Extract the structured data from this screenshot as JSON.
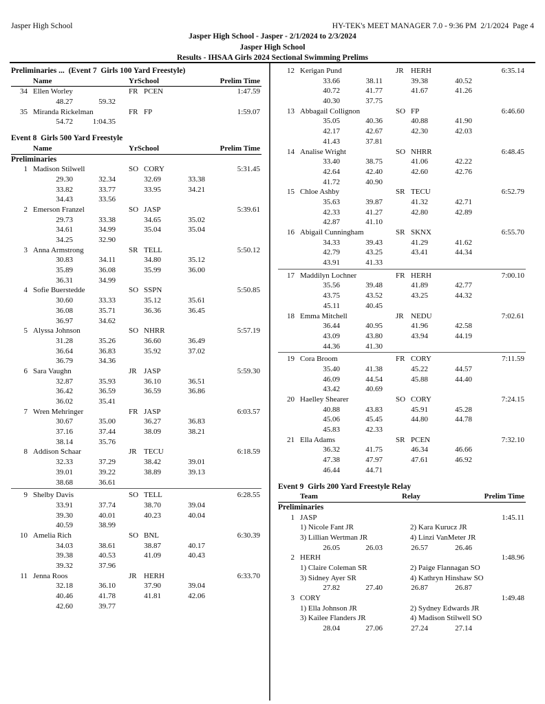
{
  "header": {
    "school": "Jasper High School",
    "meta": "HY-TEK's MEET MANAGER 7.0 - 9:36 PM  2/1/2024  Page 4",
    "meet_title": "Jasper High School - Jasper - 2/1/2024 to 2/3/2024",
    "host": "Jasper High School",
    "results_title": "Results - IHSAA Girls 2024 Sectional Swimming Prelims"
  },
  "columns": {
    "left": [
      {
        "type": "section_header",
        "text": "Preliminaries ...  (Event 7  Girls 100 Yard Freestyle)"
      },
      {
        "type": "table_header",
        "variant": "individual",
        "col1": "Name",
        "col2": "YrSchool",
        "col3": "Prelim Time"
      },
      {
        "type": "entry",
        "place": "34",
        "name": "Ellen Worley",
        "yr": "FR",
        "school": "PCEN",
        "time": "1:47.59",
        "splits": [
          [
            "48.27",
            "59.32"
          ]
        ]
      },
      {
        "type": "entry",
        "place": "35",
        "name": "Miranda Rickelman",
        "yr": "FR",
        "school": "FP",
        "time": "1:59.07",
        "splits": [
          [
            "54.72",
            "1:04.35"
          ]
        ]
      },
      {
        "type": "event_header",
        "text": "Event 8  Girls 500 Yard Freestyle"
      },
      {
        "type": "table_header",
        "variant": "individual",
        "col1": "Name",
        "col2": "YrSchool",
        "col3": "Prelim Time"
      },
      {
        "type": "subheader",
        "text": "Preliminaries"
      },
      {
        "type": "entry",
        "place": "1",
        "name": "Madison Stilwell",
        "yr": "SO",
        "school": "CORY",
        "time": "5:31.45",
        "splits": [
          [
            "29.30",
            "32.34",
            "32.69",
            "33.38"
          ],
          [
            "33.82",
            "33.77",
            "33.95",
            "34.21"
          ],
          [
            "34.43",
            "33.56"
          ]
        ]
      },
      {
        "type": "entry",
        "place": "2",
        "name": "Emerson Franzel",
        "yr": "SO",
        "school": "JASP",
        "time": "5:39.61",
        "splits": [
          [
            "29.73",
            "33.38",
            "34.65",
            "35.02"
          ],
          [
            "34.61",
            "34.99",
            "35.04",
            "35.04"
          ],
          [
            "34.25",
            "32.90"
          ]
        ]
      },
      {
        "type": "entry",
        "place": "3",
        "name": "Anna Armstrong",
        "yr": "SR",
        "school": "TELL",
        "time": "5:50.12",
        "splits": [
          [
            "30.83",
            "34.11",
            "34.80",
            "35.12"
          ],
          [
            "35.89",
            "36.08",
            "35.99",
            "36.00"
          ],
          [
            "36.31",
            "34.99"
          ]
        ]
      },
      {
        "type": "entry",
        "place": "4",
        "name": "Sofie Buerstedde",
        "yr": "SO",
        "school": "SSPN",
        "time": "5:50.85",
        "splits": [
          [
            "30.60",
            "33.33",
            "35.12",
            "35.61"
          ],
          [
            "36.08",
            "35.71",
            "36.36",
            "36.45"
          ],
          [
            "36.97",
            "34.62"
          ]
        ]
      },
      {
        "type": "entry",
        "place": "5",
        "name": "Alyssa Johnson",
        "yr": "SO",
        "school": "NHRR",
        "time": "5:57.19",
        "splits": [
          [
            "31.28",
            "35.26",
            "36.60",
            "36.49"
          ],
          [
            "36.64",
            "36.83",
            "35.92",
            "37.02"
          ],
          [
            "36.79",
            "34.36"
          ]
        ]
      },
      {
        "type": "entry",
        "place": "6",
        "name": "Sara Vaughn",
        "yr": "JR",
        "school": "JASP",
        "time": "5:59.30",
        "splits": [
          [
            "32.87",
            "35.93",
            "36.10",
            "36.51"
          ],
          [
            "36.42",
            "36.59",
            "36.59",
            "36.86"
          ],
          [
            "36.02",
            "35.41"
          ]
        ]
      },
      {
        "type": "entry",
        "place": "7",
        "name": "Wren Mehringer",
        "yr": "FR",
        "school": "JASP",
        "time": "6:03.57",
        "splits": [
          [
            "30.67",
            "35.00",
            "36.27",
            "36.83"
          ],
          [
            "37.16",
            "37.44",
            "38.09",
            "38.21"
          ],
          [
            "38.14",
            "35.76"
          ]
        ]
      },
      {
        "type": "entry",
        "place": "8",
        "name": "Addison Schaar",
        "yr": "JR",
        "school": "TECU",
        "time": "6:18.59",
        "splits": [
          [
            "32.33",
            "37.29",
            "38.42",
            "39.01"
          ],
          [
            "39.01",
            "39.22",
            "38.89",
            "39.13"
          ],
          [
            "38.68",
            "36.61"
          ]
        ]
      },
      {
        "type": "separator"
      },
      {
        "type": "entry",
        "place": "9",
        "name": "Shelby Davis",
        "yr": "SO",
        "school": "TELL",
        "time": "6:28.55",
        "splits": [
          [
            "33.91",
            "37.74",
            "38.70",
            "39.04"
          ],
          [
            "39.30",
            "40.01",
            "40.23",
            "40.04"
          ],
          [
            "40.59",
            "38.99"
          ]
        ]
      },
      {
        "type": "entry",
        "place": "10",
        "name": "Amelia Rich",
        "yr": "SO",
        "school": "BNL",
        "time": "6:30.39",
        "splits": [
          [
            "34.03",
            "38.61",
            "38.87",
            "40.17"
          ],
          [
            "39.38",
            "40.53",
            "41.09",
            "40.43"
          ],
          [
            "39.32",
            "37.96"
          ]
        ]
      },
      {
        "type": "entry",
        "place": "11",
        "name": "Jenna Roos",
        "yr": "JR",
        "school": "HERH",
        "time": "6:33.70",
        "splits": [
          [
            "32.18",
            "36.10",
            "37.90",
            "39.04"
          ],
          [
            "40.46",
            "41.78",
            "41.81",
            "42.06"
          ],
          [
            "42.60",
            "39.77"
          ]
        ]
      }
    ],
    "right": [
      {
        "type": "entry",
        "place": "12",
        "name": "Kerigan Pund",
        "yr": "JR",
        "school": "HERH",
        "time": "6:35.14",
        "splits": [
          [
            "33.66",
            "38.11",
            "39.38",
            "40.52"
          ],
          [
            "40.72",
            "41.77",
            "41.67",
            "41.26"
          ],
          [
            "40.30",
            "37.75"
          ]
        ]
      },
      {
        "type": "entry",
        "place": "13",
        "name": "Abbagail Collignon",
        "yr": "SO",
        "school": "FP",
        "time": "6:46.60",
        "splits": [
          [
            "35.05",
            "40.36",
            "40.88",
            "41.90"
          ],
          [
            "42.17",
            "42.67",
            "42.30",
            "42.03"
          ],
          [
            "41.43",
            "37.81"
          ]
        ]
      },
      {
        "type": "entry",
        "place": "14",
        "name": "Analise Wright",
        "yr": "SO",
        "school": "NHRR",
        "time": "6:48.45",
        "splits": [
          [
            "33.40",
            "38.75",
            "41.06",
            "42.22"
          ],
          [
            "42.64",
            "42.40",
            "42.60",
            "42.76"
          ],
          [
            "41.72",
            "40.90"
          ]
        ]
      },
      {
        "type": "entry",
        "place": "15",
        "name": "Chloe Ashby",
        "yr": "SR",
        "school": "TECU",
        "time": "6:52.79",
        "splits": [
          [
            "35.63",
            "39.87",
            "41.32",
            "42.71"
          ],
          [
            "42.33",
            "41.27",
            "42.80",
            "42.89"
          ],
          [
            "42.87",
            "41.10"
          ]
        ]
      },
      {
        "type": "entry",
        "place": "16",
        "name": "Abigail Cunningham",
        "yr": "SR",
        "school": "SKNX",
        "time": "6:55.70",
        "splits": [
          [
            "34.33",
            "39.43",
            "41.29",
            "41.62"
          ],
          [
            "42.79",
            "43.25",
            "43.41",
            "44.34"
          ],
          [
            "43.91",
            "41.33"
          ]
        ]
      },
      {
        "type": "separator"
      },
      {
        "type": "entry",
        "place": "17",
        "name": "Maddilyn Lochner",
        "yr": "FR",
        "school": "HERH",
        "time": "7:00.10",
        "splits": [
          [
            "35.56",
            "39.48",
            "41.89",
            "42.77"
          ],
          [
            "43.75",
            "43.52",
            "43.25",
            "44.32"
          ],
          [
            "45.11",
            "40.45"
          ]
        ]
      },
      {
        "type": "entry",
        "place": "18",
        "name": "Emma Mitchell",
        "yr": "JR",
        "school": "NEDU",
        "time": "7:02.61",
        "splits": [
          [
            "36.44",
            "40.95",
            "41.96",
            "42.58"
          ],
          [
            "43.09",
            "43.80",
            "43.94",
            "44.19"
          ],
          [
            "44.36",
            "41.30"
          ]
        ]
      },
      {
        "type": "separator"
      },
      {
        "type": "entry",
        "place": "19",
        "name": "Cora Broom",
        "yr": "FR",
        "school": "CORY",
        "time": "7:11.59",
        "splits": [
          [
            "35.40",
            "41.38",
            "45.22",
            "44.57"
          ],
          [
            "46.09",
            "44.54",
            "45.88",
            "44.40"
          ],
          [
            "43.42",
            "40.69"
          ]
        ]
      },
      {
        "type": "entry",
        "place": "20",
        "name": "Haelley Shearer",
        "yr": "SO",
        "school": "CORY",
        "time": "7:24.15",
        "splits": [
          [
            "40.88",
            "43.83",
            "45.91",
            "45.28"
          ],
          [
            "45.06",
            "45.45",
            "44.80",
            "44.78"
          ],
          [
            "45.83",
            "42.33"
          ]
        ]
      },
      {
        "type": "entry",
        "place": "21",
        "name": "Ella Adams",
        "yr": "SR",
        "school": "PCEN",
        "time": "7:32.10",
        "splits": [
          [
            "36.32",
            "41.75",
            "46.34",
            "46.66"
          ],
          [
            "47.38",
            "47.97",
            "47.61",
            "46.92"
          ],
          [
            "46.44",
            "44.71"
          ]
        ]
      },
      {
        "type": "event_header",
        "text": "Event 9  Girls 200 Yard Freestyle Relay"
      },
      {
        "type": "table_header",
        "variant": "relay",
        "col1": "Team",
        "col2": "Relay",
        "col3": "Prelim Time"
      },
      {
        "type": "subheader",
        "text": "Preliminaries"
      },
      {
        "type": "relay",
        "place": "1",
        "team": "JASP",
        "time": "1:45.11",
        "swimmers": [
          [
            "1) Nicole Fant JR",
            "2) Kara Kurucz JR"
          ],
          [
            "3) Lillian Wertman JR",
            "4) Linzi VanMeter JR"
          ]
        ],
        "splits": [
          [
            "26.05",
            "26.03",
            "26.57",
            "26.46"
          ]
        ]
      },
      {
        "type": "relay",
        "place": "2",
        "team": "HERH",
        "time": "1:48.96",
        "swimmers": [
          [
            "1) Claire Coleman SR",
            "2) Paige Flannagan SO"
          ],
          [
            "3) Sidney Ayer SR",
            "4) Kathryn Hinshaw SO"
          ]
        ],
        "splits": [
          [
            "27.82",
            "27.40",
            "26.87",
            "26.87"
          ]
        ]
      },
      {
        "type": "relay",
        "place": "3",
        "team": "CORY",
        "time": "1:49.48",
        "swimmers": [
          [
            "1) Ella Johnson JR",
            "2) Sydney Edwards JR"
          ],
          [
            "3) Kailee Flanders JR",
            "4) Madison Stilwell SO"
          ]
        ],
        "splits": [
          [
            "28.04",
            "27.06",
            "27.24",
            "27.14"
          ]
        ]
      }
    ]
  }
}
